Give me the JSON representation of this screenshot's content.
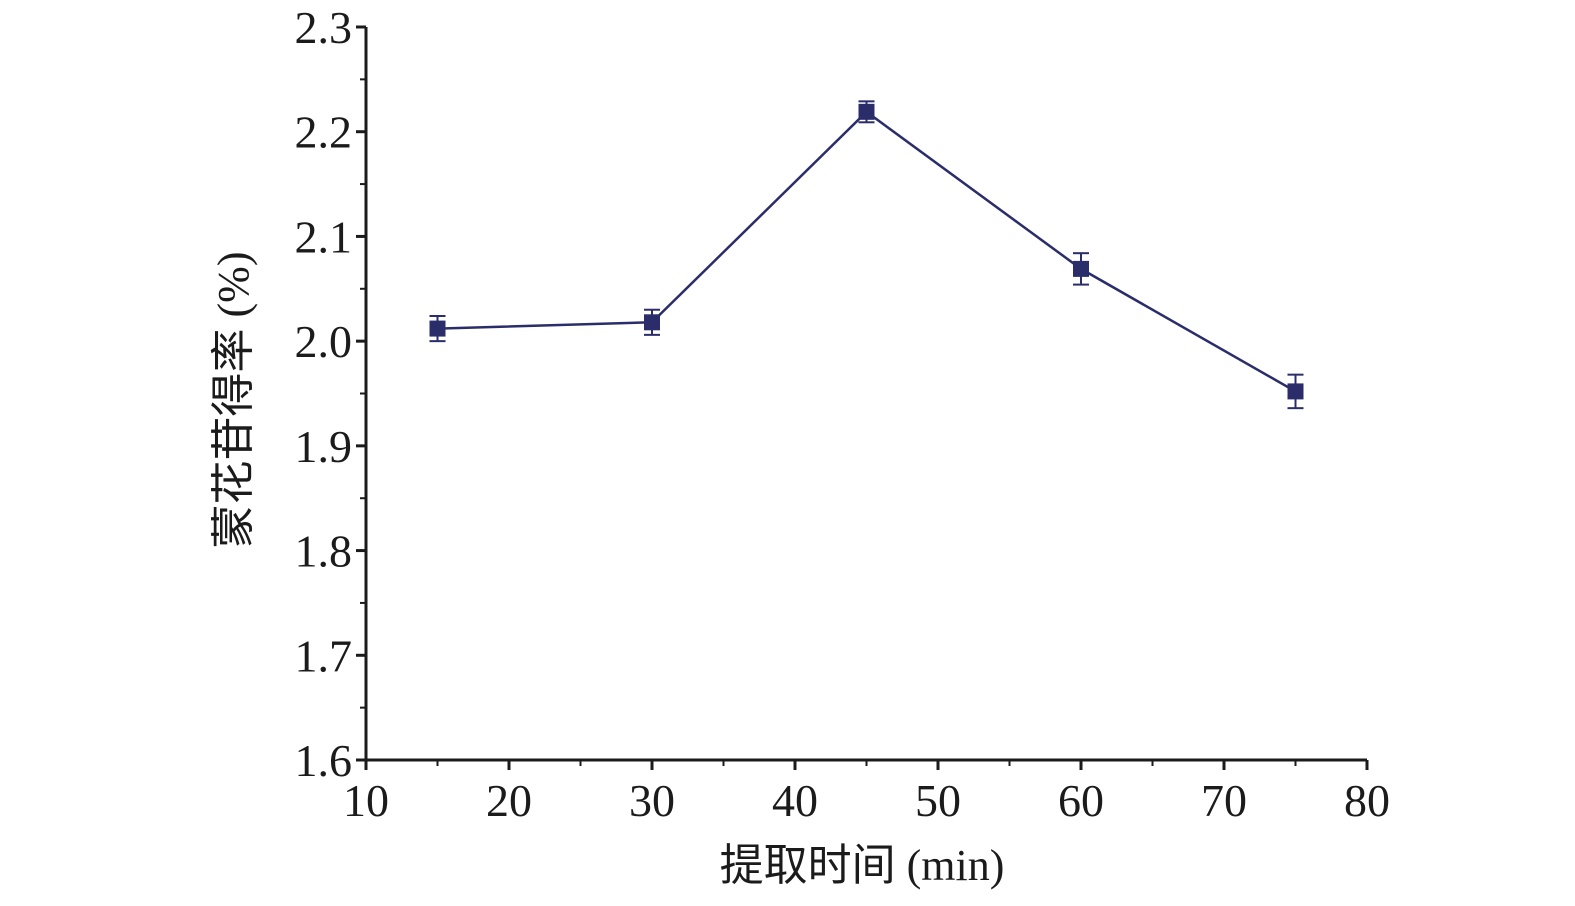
{
  "chart_data": {
    "type": "line",
    "title": "",
    "xlabel": "提取时间 (min)",
    "ylabel": "蒙花苷得率 (%)",
    "xlim": [
      10,
      80
    ],
    "ylim": [
      1.6,
      2.3
    ],
    "x_ticks": [
      "10",
      "20",
      "30",
      "40",
      "50",
      "60",
      "70",
      "80"
    ],
    "y_ticks": [
      "1.6",
      "1.7",
      "1.8",
      "1.9",
      "2.0",
      "2.1",
      "2.2",
      "2.3"
    ],
    "grid": false,
    "legend": "none",
    "series": [
      {
        "x": [
          15,
          30,
          45,
          60,
          75
        ],
        "y": [
          2.012,
          2.018,
          2.219,
          2.069,
          1.952
        ],
        "error": [
          0.012,
          0.012,
          0.01,
          0.015,
          0.016
        ],
        "color": "#2b2d6b",
        "marker": "square"
      }
    ]
  }
}
